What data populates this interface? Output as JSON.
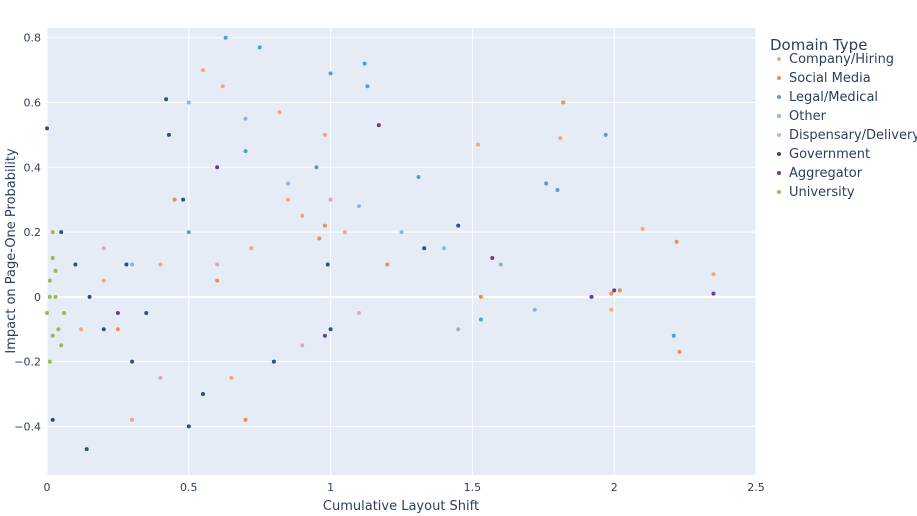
{
  "chart_data": {
    "type": "scatter",
    "xlabel": "Cumulative Layout Shift",
    "ylabel": "Impact on Page-One Probability",
    "xlim": [
      0,
      2.5
    ],
    "ylim": [
      -0.55,
      0.83
    ],
    "x_ticks": [
      0,
      0.5,
      1,
      1.5,
      2,
      2.5
    ],
    "x_tick_labels": [
      "0",
      "0.5",
      "1",
      "1.5",
      "2",
      "2.5"
    ],
    "y_ticks": [
      -0.4,
      -0.2,
      0,
      0.2,
      0.4,
      0.6,
      0.8
    ],
    "y_tick_labels": [
      "−0.4",
      "−0.2",
      "0",
      "0.2",
      "0.4",
      "0.6",
      "0.8"
    ],
    "grid": true,
    "legend": {
      "title": "Domain Type",
      "placement": "right"
    },
    "series": [
      {
        "name": "Company/Hiring",
        "color": "#f4a582",
        "points": [
          [
            0.55,
            0.7
          ],
          [
            0.62,
            0.65
          ],
          [
            0.82,
            0.57
          ],
          [
            0.98,
            0.5
          ],
          [
            1.52,
            0.47
          ],
          [
            1.81,
            0.49
          ],
          [
            1.05,
            0.2
          ],
          [
            0.85,
            0.3
          ],
          [
            0.3,
            -0.38
          ],
          [
            0.65,
            -0.25
          ],
          [
            2.35,
            0.07
          ],
          [
            1.99,
            -0.04
          ],
          [
            0.4,
            0.1
          ],
          [
            0.2,
            0.05
          ],
          [
            0.12,
            -0.1
          ],
          [
            0.72,
            0.15
          ],
          [
            0.9,
            0.25
          ],
          [
            2.1,
            0.21
          ]
        ]
      },
      {
        "name": "Social Media",
        "color": "#e7915a",
        "points": [
          [
            1.82,
            0.6
          ],
          [
            0.98,
            0.22
          ],
          [
            0.96,
            0.18
          ],
          [
            1.2,
            0.1
          ],
          [
            1.53,
            0.0
          ],
          [
            1.99,
            0.01
          ],
          [
            2.02,
            0.02
          ],
          [
            2.22,
            0.17
          ],
          [
            2.23,
            -0.17
          ],
          [
            0.7,
            -0.38
          ],
          [
            0.6,
            0.05
          ],
          [
            0.45,
            0.3
          ],
          [
            0.25,
            -0.1
          ]
        ]
      },
      {
        "name": "Legal/Medical",
        "color": "#5b9bd5",
        "points": [
          [
            0.63,
            0.8
          ],
          [
            0.75,
            0.77
          ],
          [
            1.0,
            0.69
          ],
          [
            1.12,
            0.72
          ],
          [
            1.13,
            0.65
          ],
          [
            1.97,
            0.5
          ],
          [
            1.31,
            0.37
          ],
          [
            1.76,
            0.35
          ],
          [
            1.8,
            0.33
          ],
          [
            2.21,
            -0.12
          ],
          [
            1.53,
            -0.07
          ],
          [
            0.95,
            0.4
          ],
          [
            0.7,
            0.45
          ],
          [
            0.5,
            0.2
          ]
        ]
      },
      {
        "name": "Other",
        "color": "#8fb4e0",
        "points": [
          [
            0.5,
            0.6
          ],
          [
            0.7,
            0.55
          ],
          [
            0.85,
            0.35
          ],
          [
            1.1,
            0.28
          ],
          [
            1.25,
            0.2
          ],
          [
            1.4,
            0.15
          ],
          [
            1.6,
            0.1
          ],
          [
            1.72,
            -0.04
          ],
          [
            1.45,
            -0.1
          ],
          [
            0.3,
            0.1
          ]
        ]
      },
      {
        "name": "Dispensary/Delivery",
        "color": "#d7a6d2",
        "points": [
          [
            1.0,
            0.3
          ],
          [
            0.4,
            -0.25
          ],
          [
            0.9,
            -0.15
          ],
          [
            1.1,
            -0.05
          ],
          [
            0.6,
            0.1
          ],
          [
            0.2,
            0.15
          ]
        ]
      },
      {
        "name": "Government",
        "color": "#2c4f86",
        "points": [
          [
            0.0,
            0.52
          ],
          [
            0.42,
            0.61
          ],
          [
            0.43,
            0.5
          ],
          [
            0.48,
            0.3
          ],
          [
            0.05,
            0.2
          ],
          [
            0.1,
            0.1
          ],
          [
            0.15,
            0.0
          ],
          [
            0.2,
            -0.1
          ],
          [
            0.3,
            -0.2
          ],
          [
            0.5,
            -0.4
          ],
          [
            0.35,
            -0.05
          ],
          [
            0.28,
            0.1
          ],
          [
            0.55,
            -0.3
          ],
          [
            0.8,
            -0.2
          ],
          [
            1.0,
            -0.1
          ],
          [
            0.99,
            0.1
          ],
          [
            1.33,
            0.15
          ],
          [
            1.45,
            0.22
          ],
          [
            0.14,
            -0.47
          ],
          [
            0.02,
            -0.38
          ]
        ]
      },
      {
        "name": "Aggregator",
        "color": "#6a3d9a",
        "points": [
          [
            1.17,
            0.53
          ],
          [
            2.35,
            0.01
          ],
          [
            1.92,
            0.0
          ],
          [
            0.98,
            -0.12
          ],
          [
            0.6,
            0.4
          ],
          [
            0.25,
            -0.05
          ],
          [
            1.57,
            0.12
          ],
          [
            2.0,
            0.02
          ]
        ]
      },
      {
        "name": "University",
        "color": "#8fbf4f",
        "points": [
          [
            0.0,
            -0.05
          ],
          [
            0.01,
            0.05
          ],
          [
            0.02,
            -0.12
          ],
          [
            0.03,
            0.08
          ],
          [
            0.01,
            -0.2
          ],
          [
            0.02,
            0.12
          ],
          [
            0.04,
            -0.1
          ],
          [
            0.03,
            0.0
          ],
          [
            0.05,
            -0.15
          ],
          [
            0.02,
            0.2
          ],
          [
            0.06,
            -0.05
          ],
          [
            0.01,
            0.0
          ]
        ]
      }
    ]
  }
}
